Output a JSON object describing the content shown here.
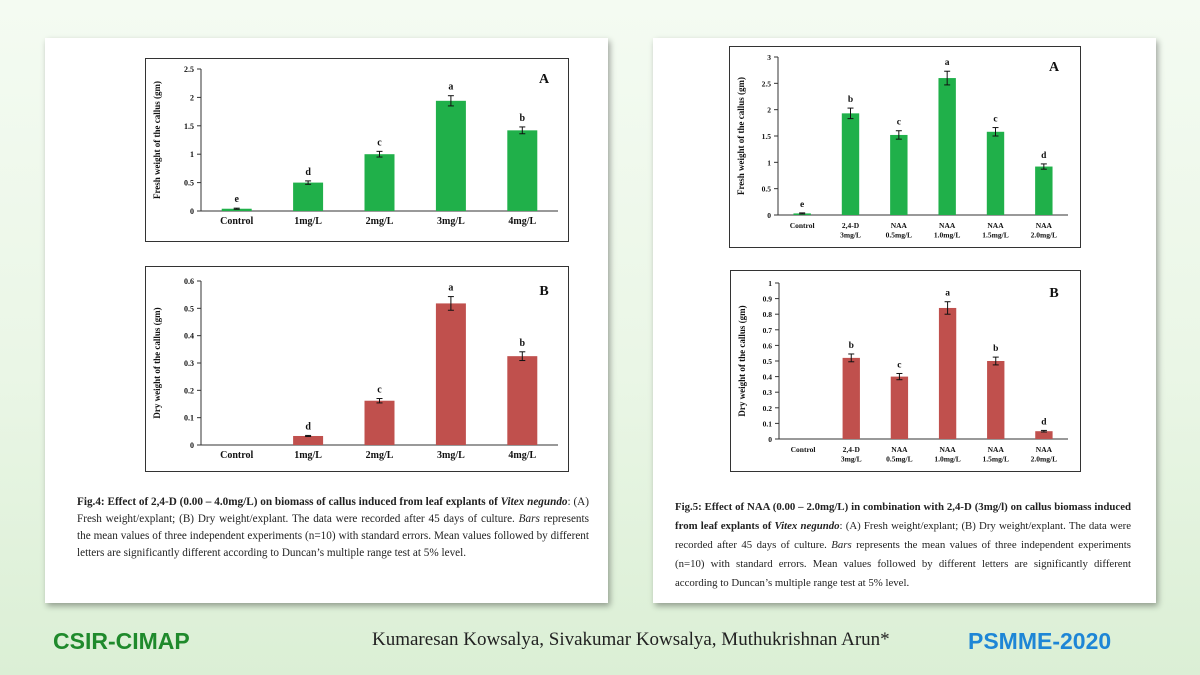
{
  "colors": {
    "green_bar": "#20b04a",
    "red_bar": "#c0504d",
    "footer_left": "#1f8a2c",
    "footer_right": "#1e86d6"
  },
  "fig4": {
    "caption": {
      "label": "Fig.4: Effect of 2,4-D (0.00 – 4.0mg/L) on biomass of callus induced from leaf explants of ",
      "species": "Vitex negundo",
      "rest1": ": (A) Fresh weight/explant; (B) Dry weight/explant. The data were recorded after 45 days of culture. ",
      "bars_word": "Bars",
      "rest2": " represents the mean values of three independent experiments (n=10) with standard errors. Mean values followed by different letters are significantly different according to Duncan’s multiple range test at 5% level."
    }
  },
  "fig5": {
    "caption": {
      "label": "Fig.5: Effect of NAA (0.00 – 2.0mg/L) in combination with 2,4-D (3mg/l) on callus biomass induced from leaf explants of ",
      "species": "Vitex negundo",
      "rest1": ": (A) Fresh weight/explant; (B) Dry weight/explant. The data were recorded after 45 days of culture. ",
      "bars_word": "Bars",
      "rest2": " represents the mean values of three independent experiments (n=10) with standard errors. Mean values followed by different letters are significantly different according to Duncan’s multiple range test at 5% level."
    }
  },
  "footer": {
    "left": "CSIR-CIMAP",
    "center": "Kumaresan Kowsalya, Sivakumar Kowsalya, Muthukrishnan Arun*",
    "right": "PSMME-2020"
  },
  "chart_data": [
    {
      "id": "fig4A",
      "type": "bar",
      "panel_letter": "A",
      "categories": [
        "Control",
        "1mg/L",
        "2mg/L",
        "3mg/L",
        "4mg/L"
      ],
      "values": [
        0.04,
        0.5,
        1.0,
        1.94,
        1.42
      ],
      "errors": [
        0.01,
        0.03,
        0.05,
        0.09,
        0.06
      ],
      "letters": [
        "e",
        "d",
        "c",
        "a",
        "b"
      ],
      "ylabel": "Fresh weight of the callus (gm)",
      "ylim": [
        0,
        2.5
      ],
      "yticks": [
        "0",
        "0.5",
        "1",
        "1.5",
        "2",
        "2.5"
      ],
      "color": "#20b04a"
    },
    {
      "id": "fig4B",
      "type": "bar",
      "panel_letter": "B",
      "categories": [
        "Control",
        "1mg/L",
        "2mg/L",
        "3mg/L",
        "4mg/L"
      ],
      "values": [
        0,
        0.033,
        0.162,
        0.518,
        0.325
      ],
      "errors": [
        0,
        0.002,
        0.008,
        0.025,
        0.016
      ],
      "letters": [
        "",
        "d",
        "c",
        "a",
        "b"
      ],
      "ylabel": "Dry weight of the callus (gm)",
      "ylim": [
        0,
        0.6
      ],
      "yticks": [
        "0",
        "0.1",
        "0.2",
        "0.3",
        "0.4",
        "0.5",
        "0.6"
      ],
      "color": "#c0504d"
    },
    {
      "id": "fig5A",
      "type": "bar",
      "panel_letter": "A",
      "categories": [
        [
          "Control"
        ],
        [
          "2,4-D",
          "3mg/L"
        ],
        [
          "NAA",
          "0.5mg/L"
        ],
        [
          "NAA",
          "1.0mg/L"
        ],
        [
          "NAA",
          "1.5mg/L"
        ],
        [
          "NAA",
          "2.0mg/L"
        ]
      ],
      "values": [
        0.03,
        1.93,
        1.52,
        2.6,
        1.58,
        0.92
      ],
      "errors": [
        0.01,
        0.1,
        0.08,
        0.13,
        0.08,
        0.05
      ],
      "letters": [
        "e",
        "b",
        "c",
        "a",
        "c",
        "d"
      ],
      "ylabel": "Fresh weight of the callus (gm)",
      "ylim": [
        0,
        3
      ],
      "yticks": [
        "0",
        "0.5",
        "1",
        "1.5",
        "2",
        "2.5",
        "3"
      ],
      "color": "#20b04a"
    },
    {
      "id": "fig5B",
      "type": "bar",
      "panel_letter": "B",
      "categories": [
        [
          "Control"
        ],
        [
          "2,4-D",
          "3mg/L"
        ],
        [
          "NAA",
          "0.5mg/L"
        ],
        [
          "NAA",
          "1.0mg/L"
        ],
        [
          "NAA",
          "1.5mg/L"
        ],
        [
          "NAA",
          "2.0mg/L"
        ]
      ],
      "values": [
        0,
        0.52,
        0.4,
        0.84,
        0.5,
        0.05
      ],
      "errors": [
        0,
        0.025,
        0.02,
        0.04,
        0.025,
        0.005
      ],
      "letters": [
        "",
        "b",
        "c",
        "a",
        "b",
        "d"
      ],
      "ylabel": "Dry weight of the callus (gm)",
      "ylim": [
        0,
        1
      ],
      "yticks": [
        "0",
        "0.1",
        "0.2",
        "0.3",
        "0.4",
        "0.5",
        "0.6",
        "0.7",
        "0.8",
        "0.9",
        "1"
      ],
      "color": "#c0504d"
    }
  ]
}
